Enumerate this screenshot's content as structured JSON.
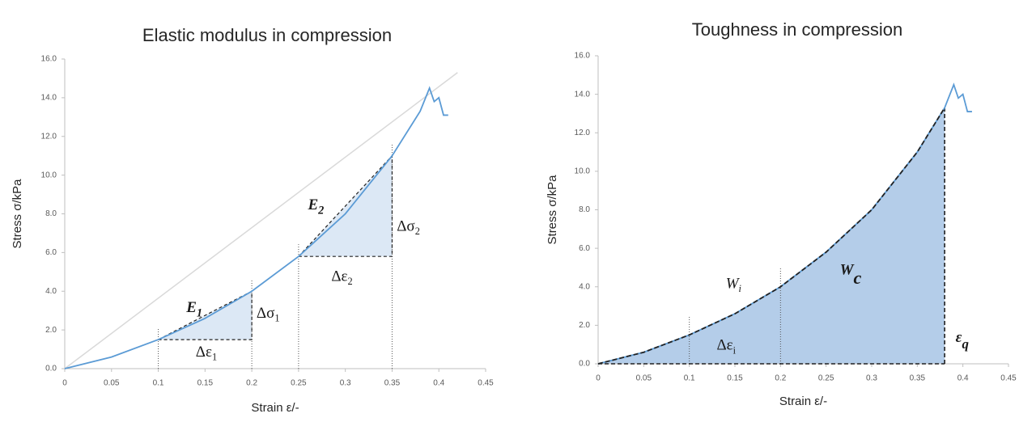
{
  "chart_data": [
    {
      "type": "line",
      "title": "Elastic modulus in compression",
      "x_label": "Strain ε/-",
      "y_label": "Stress σ/kPa",
      "xlim": [
        0,
        0.45
      ],
      "ylim": [
        0,
        16
      ],
      "xticks": [
        0,
        0.05,
        0.1,
        0.15,
        0.2,
        0.25,
        0.3,
        0.35,
        0.4,
        0.45
      ],
      "yticks": [
        {
          "value": 0,
          "label": "0.0"
        },
        {
          "value": 2,
          "label": "2.0"
        },
        {
          "value": 4,
          "label": "4.0"
        },
        {
          "value": 6,
          "label": "6.0"
        },
        {
          "value": 8,
          "label": "8.0"
        },
        {
          "value": 10,
          "label": "10.0"
        },
        {
          "value": 12,
          "label": "12.0"
        },
        {
          "value": 14,
          "label": "14.0"
        },
        {
          "value": 16,
          "label": "16.0"
        }
      ],
      "curve": {
        "color": "#5b9bd5",
        "x": [
          0,
          0.05,
          0.1,
          0.15,
          0.2,
          0.25,
          0.3,
          0.35,
          0.38,
          0.39,
          0.395,
          0.4,
          0.405,
          0.41
        ],
        "values": [
          0,
          0.6,
          1.5,
          2.6,
          4.0,
          5.8,
          8.0,
          11.0,
          13.3,
          14.5,
          13.8,
          14.0,
          13.1,
          13.1
        ]
      },
      "reference_line": {
        "color": "#d9d9d9",
        "x": [
          0,
          0.42
        ],
        "y": [
          0,
          15.3
        ]
      },
      "triangles": [
        {
          "x": [
            0.1,
            0.2
          ],
          "y": [
            1.5,
            4.0
          ]
        },
        {
          "x": [
            0.25,
            0.35
          ],
          "y": [
            5.8,
            11.0
          ]
        }
      ],
      "fill_color": "#dce8f5",
      "annotations": [
        {
          "text": "E",
          "sub": "1"
        },
        {
          "text": "Δσ",
          "sub": "1"
        },
        {
          "text": "Δε",
          "sub": "1"
        },
        {
          "text": "E",
          "sub": "2"
        },
        {
          "text": "Δσ",
          "sub": "2"
        },
        {
          "text": "Δε",
          "sub": "2"
        }
      ]
    },
    {
      "type": "area",
      "title": "Toughness in compression",
      "x_label": "Strain ε/-",
      "y_label": "Stress σ/kPa",
      "xlim": [
        0,
        0.45
      ],
      "ylim": [
        0,
        16
      ],
      "xticks": [
        0,
        0.05,
        0.1,
        0.15,
        0.2,
        0.25,
        0.3,
        0.35,
        0.4,
        0.45
      ],
      "yticks": [
        {
          "value": 0,
          "label": "0.0"
        },
        {
          "value": 2,
          "label": "2.0"
        },
        {
          "value": 4,
          "label": "4.0"
        },
        {
          "value": 6,
          "label": "6.0"
        },
        {
          "value": 8,
          "label": "8.0"
        },
        {
          "value": 10,
          "label": "10.0"
        },
        {
          "value": 12,
          "label": "12.0"
        },
        {
          "value": 14,
          "label": "14.0"
        },
        {
          "value": 16,
          "label": "16.0"
        }
      ],
      "curve": {
        "color": "#5b9bd5",
        "x": [
          0,
          0.05,
          0.1,
          0.15,
          0.2,
          0.25,
          0.3,
          0.35,
          0.38,
          0.39,
          0.395,
          0.4,
          0.405,
          0.41
        ],
        "values": [
          0,
          0.6,
          1.5,
          2.6,
          4.0,
          5.8,
          8.0,
          11.0,
          13.3,
          14.5,
          13.8,
          14.0,
          13.1,
          13.1
        ]
      },
      "fill_to": 0.38,
      "guides": [
        0.1,
        0.2
      ],
      "fill_color": "#b4cde9",
      "annotations": [
        {
          "text": "W",
          "sub": "i"
        },
        {
          "text": "Δε",
          "sub": "i"
        },
        {
          "text": "W",
          "sub": "c"
        },
        {
          "text": "ε",
          "sub": "q"
        }
      ]
    }
  ]
}
